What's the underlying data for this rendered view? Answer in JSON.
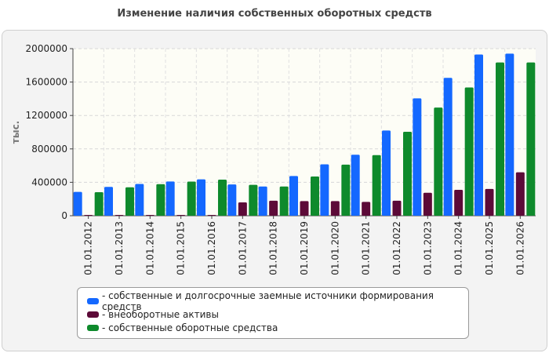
{
  "title": "Изменение наличия собственных оборотных средств",
  "chart_data": {
    "type": "bar",
    "ylabel": "тыс.",
    "xlabel": "",
    "ylim": [
      0,
      2000000
    ],
    "yticks": [
      0,
      400000,
      800000,
      1200000,
      1600000,
      2000000
    ],
    "yticklabels": [
      "0",
      "400000",
      "800000",
      "1200000",
      "1600000",
      "2000000"
    ],
    "grid": true,
    "legend_position": "bottom",
    "categories": [
      "01.01.2012",
      "01.01.2013",
      "01.01.2014",
      "01.01.2015",
      "01.01.2016",
      "01.01.2017",
      "01.01.2018",
      "01.01.2019",
      "01.01.2020",
      "01.01.2021",
      "01.01.2022",
      "01.01.2023",
      "01.01.2024",
      "01.01.2025",
      "01.01.2026"
    ],
    "series": [
      {
        "name": "собственные и долгосрочные заемные источники формирования средств",
        "color": "#1468ff",
        "values": [
          285000,
          345000,
          380000,
          410000,
          435000,
          375000,
          350000,
          475000,
          615000,
          730000,
          1020000,
          1405000,
          1650000,
          1930000,
          1940000
        ]
      },
      {
        "name": "внеоборотные активы",
        "color": "#5c0a38",
        "values": [
          5000,
          5000,
          5000,
          5000,
          5000,
          160000,
          180000,
          175000,
          175000,
          165000,
          180000,
          275000,
          310000,
          320000,
          520000
        ]
      },
      {
        "name": "собственные оборотные средства",
        "color": "#0e8a2c",
        "values": [
          282000,
          340000,
          378000,
          408000,
          432000,
          370000,
          350000,
          470000,
          612000,
          725000,
          1005000,
          1295000,
          1535000,
          1835000,
          1835000
        ]
      }
    ]
  }
}
